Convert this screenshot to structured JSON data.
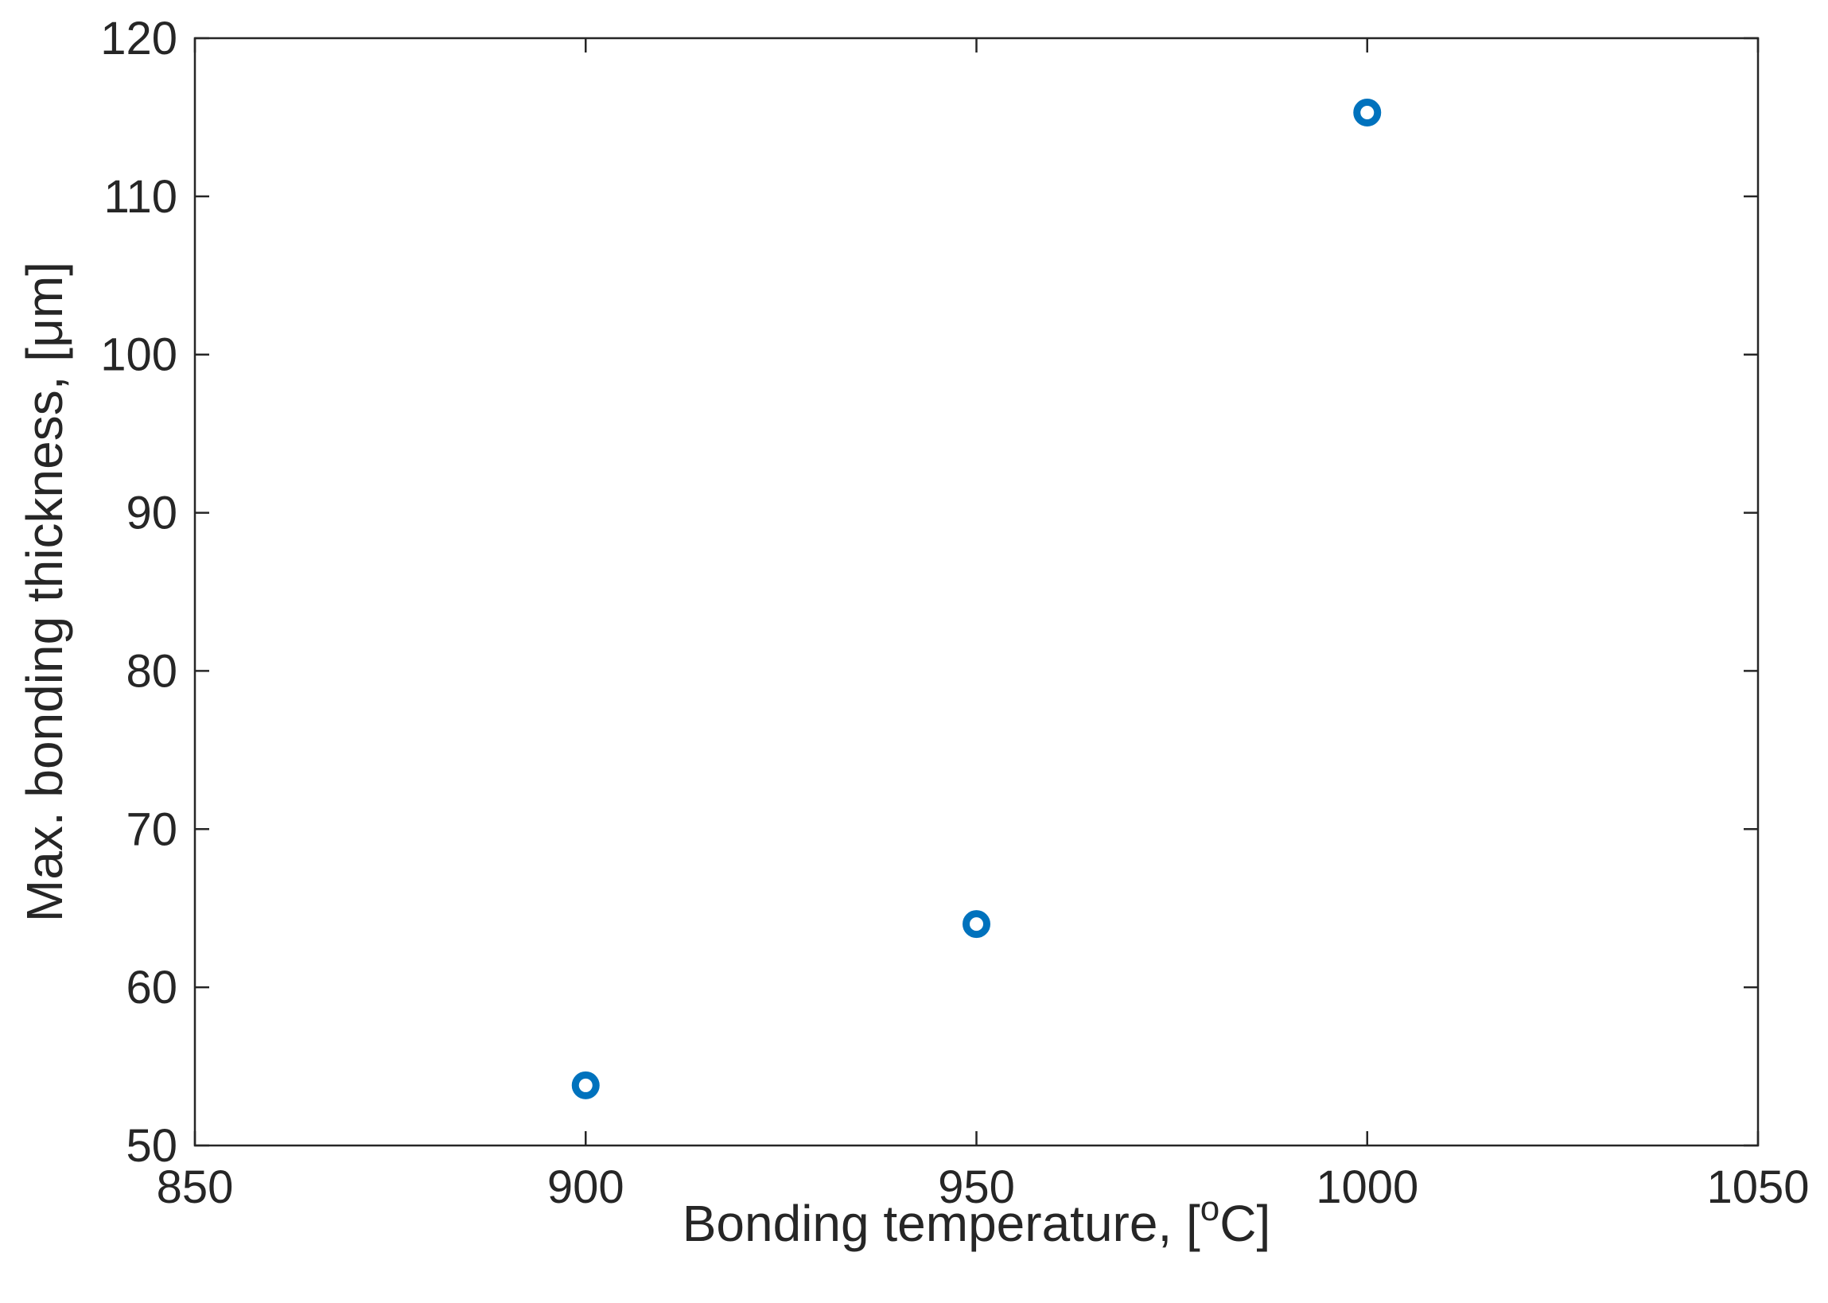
{
  "chart_data": {
    "type": "scatter",
    "title": "",
    "xlabel": "Bonding temperature, [oC]",
    "xlabel_parts": {
      "main": "Bonding temperature, [",
      "sup": "o",
      "tail": "C]"
    },
    "ylabel": "Max. bonding thickness, [μm]",
    "xlim": [
      850,
      1050
    ],
    "ylim": [
      50,
      120
    ],
    "xticks": [
      850,
      900,
      950,
      1000,
      1050
    ],
    "yticks": [
      50,
      60,
      70,
      80,
      90,
      100,
      110,
      120
    ],
    "grid": false,
    "marker_color": "#0072BD",
    "x": [
      900,
      950,
      1000
    ],
    "y": [
      53.8,
      64.0,
      115.3
    ]
  }
}
